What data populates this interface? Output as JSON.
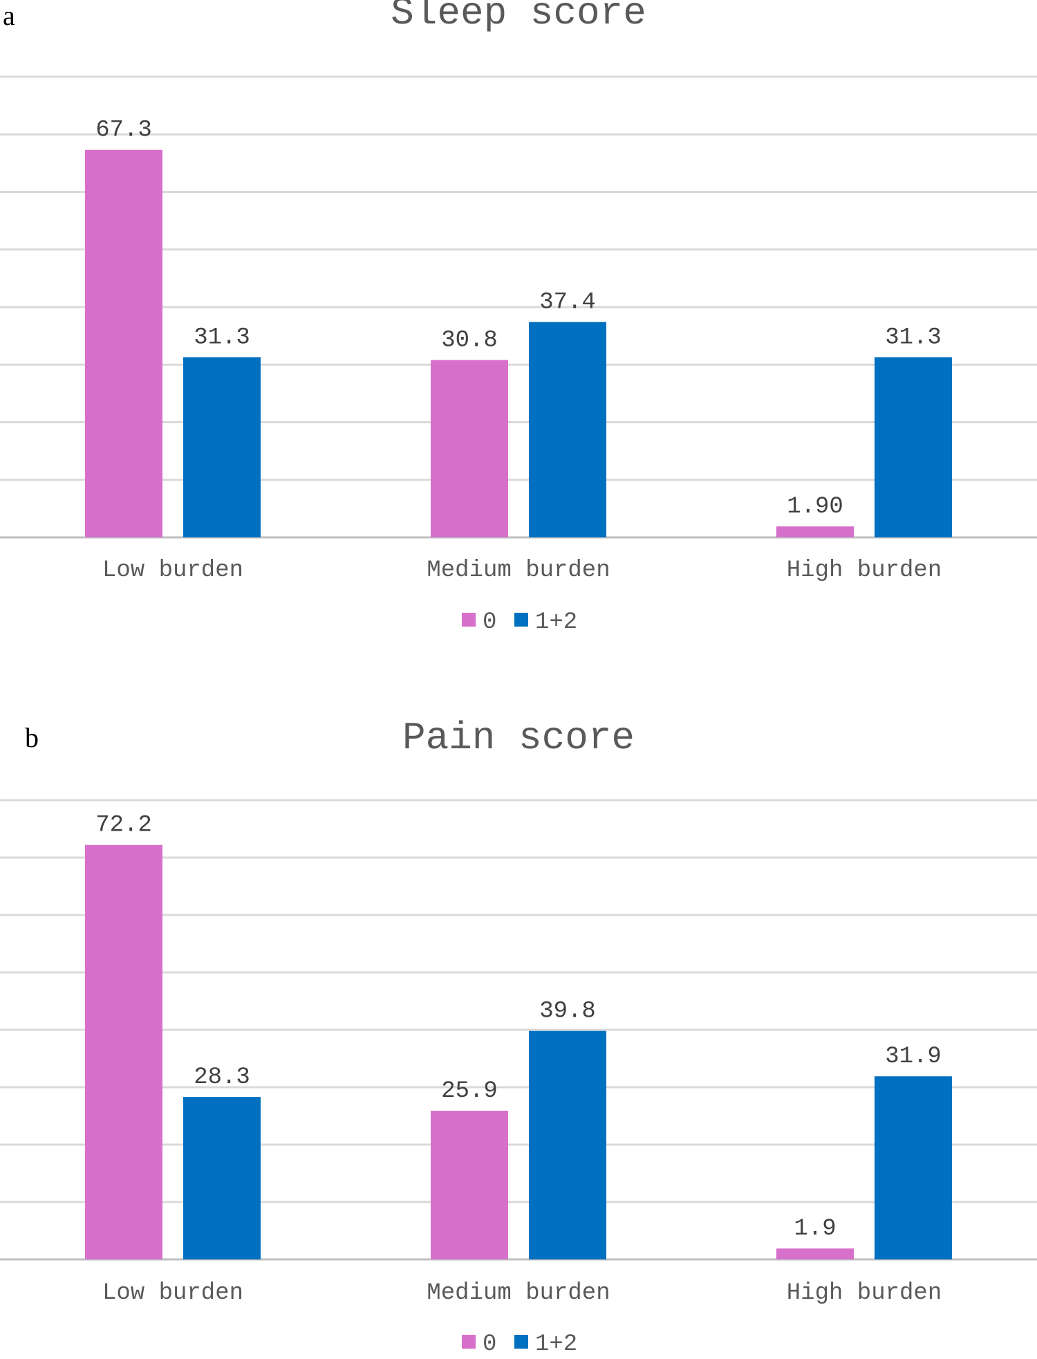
{
  "colors": {
    "series_0": "#d670cb",
    "series_1_2": "#0070c0",
    "grid": "#d9d9d9",
    "axis": "#bfbfbf"
  },
  "chart_data": [
    {
      "type": "bar",
      "panel": "a",
      "title": "Sleep score",
      "categories": [
        "Low burden",
        "Medium burden",
        "High burden"
      ],
      "series": [
        {
          "name": "0",
          "values": [
            67.3,
            30.8,
            1.9
          ],
          "labels": [
            "67.3",
            "30.8",
            "1.90"
          ]
        },
        {
          "name": "1+2",
          "values": [
            31.3,
            37.4,
            31.3
          ],
          "labels": [
            "31.3",
            "37.4",
            "31.3"
          ]
        }
      ],
      "ylim": [
        0,
        80
      ],
      "grid": true,
      "legend": "bottom"
    },
    {
      "type": "bar",
      "panel": "b",
      "title": "Pain score",
      "categories": [
        "Low burden",
        "Medium burden",
        "High burden"
      ],
      "series": [
        {
          "name": "0",
          "values": [
            72.2,
            25.9,
            1.9
          ],
          "labels": [
            "72.2",
            "25.9",
            "1.9"
          ]
        },
        {
          "name": "1+2",
          "values": [
            28.3,
            39.8,
            31.9
          ],
          "labels": [
            "28.3",
            "39.8",
            "31.9"
          ]
        }
      ],
      "ylim": [
        0,
        80
      ],
      "grid": true,
      "legend": "bottom"
    }
  ]
}
